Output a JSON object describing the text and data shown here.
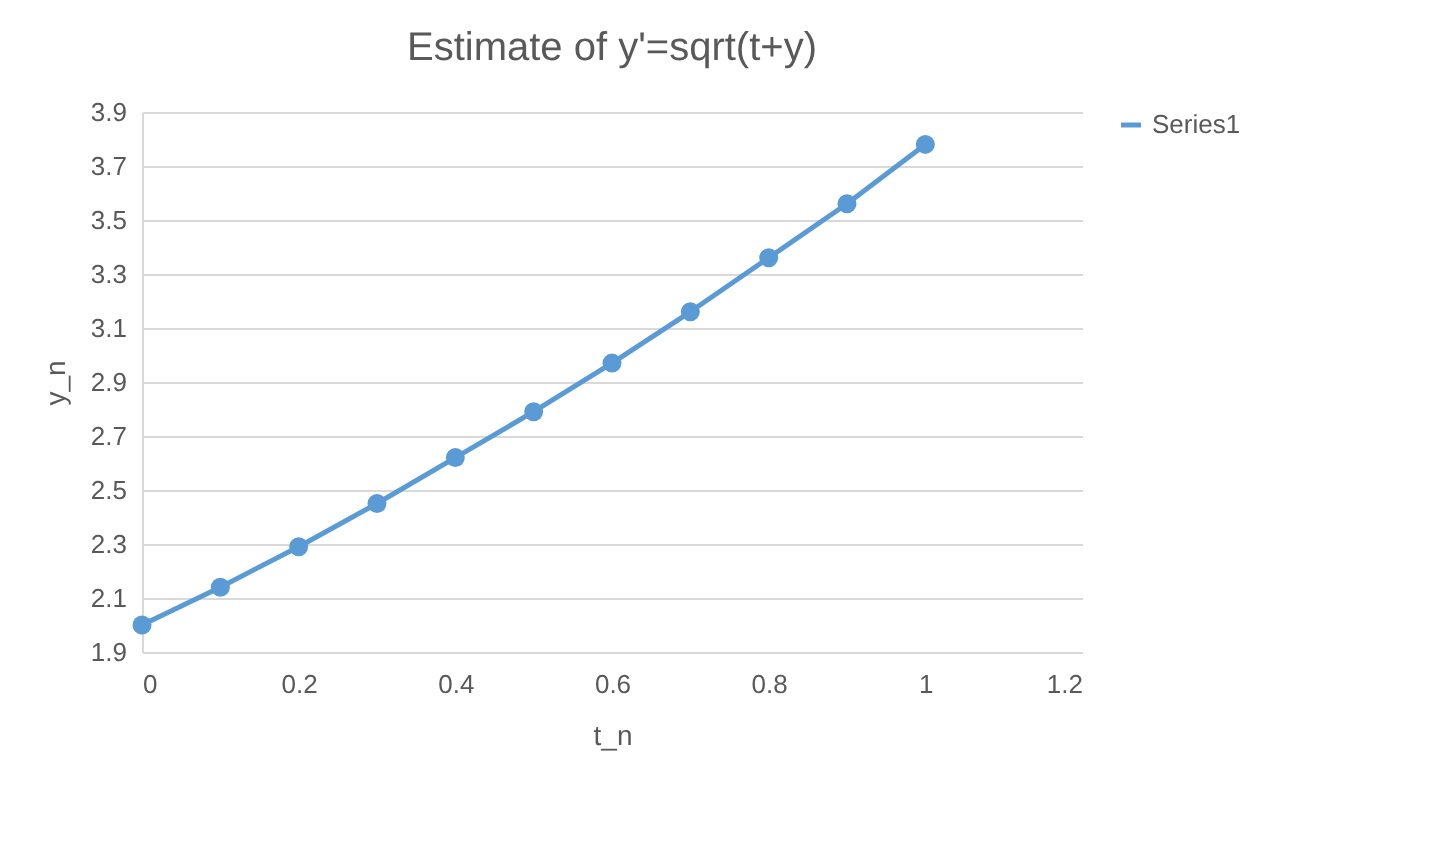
{
  "chart_data": {
    "type": "line",
    "title": "Estimate of y'=sqrt(t+y)",
    "xlabel": "t_n",
    "ylabel": "y_n",
    "x": [
      0,
      0.1,
      0.2,
      0.3,
      0.4,
      0.5,
      0.6,
      0.7,
      0.8,
      0.9,
      1.0
    ],
    "series": [
      {
        "name": "Series1",
        "color": "#5b9bd5",
        "values": [
          2.0,
          2.14,
          2.29,
          2.45,
          2.62,
          2.79,
          2.97,
          3.16,
          3.36,
          3.56,
          3.78
        ]
      }
    ],
    "xlim": [
      0,
      1.2
    ],
    "xticks": [
      0,
      0.2,
      0.4,
      0.6,
      0.8,
      1,
      1.2
    ],
    "ylim": [
      1.9,
      3.9
    ],
    "yticks": [
      1.9,
      2.1,
      2.3,
      2.5,
      2.7,
      2.9,
      3.1,
      3.3,
      3.5,
      3.7,
      3.9
    ],
    "grid": "y",
    "legend": "right",
    "marker": "circle",
    "line_style": "solid"
  }
}
